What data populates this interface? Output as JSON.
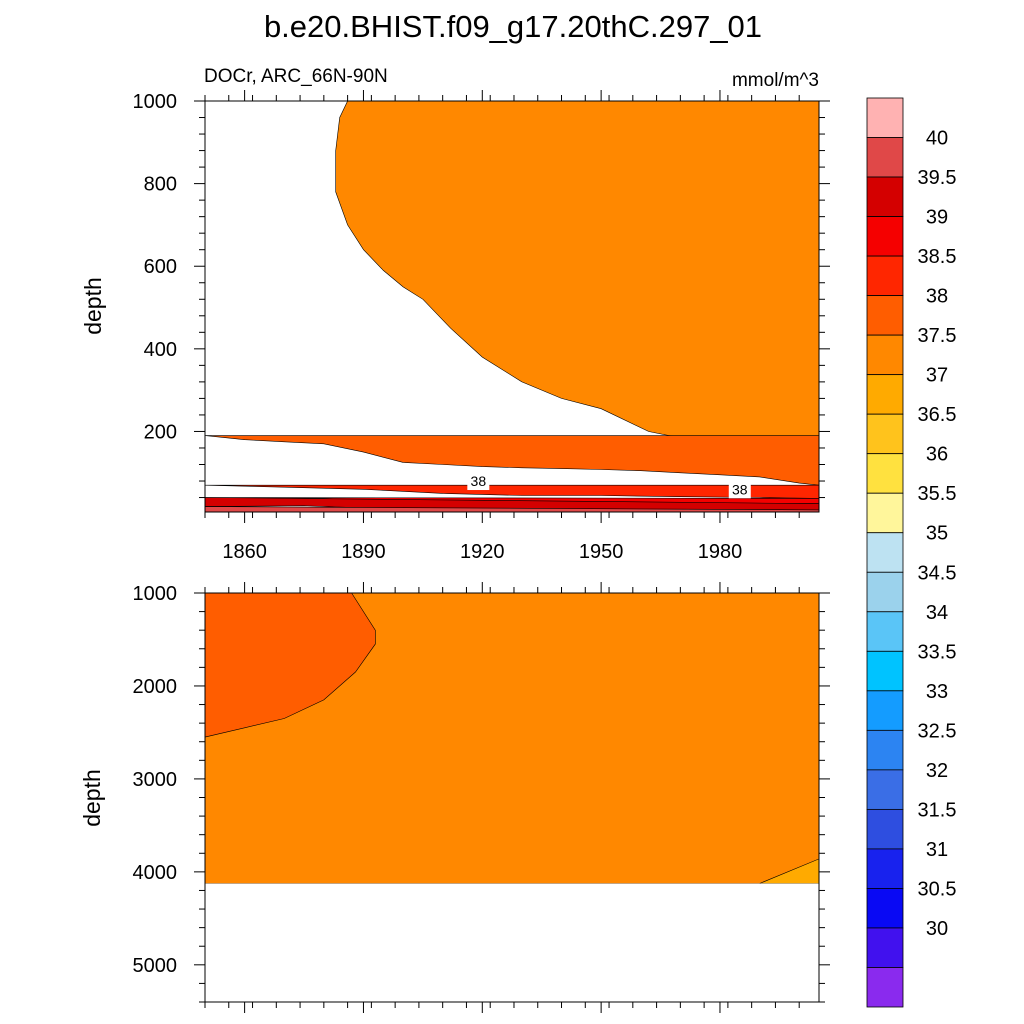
{
  "title": "b.e20.BHIST.f09_g17.20thC.297_01",
  "subtitle_left": "DOCr, ARC_66N-90N",
  "subtitle_right": "mmol/m^3",
  "chart_data": [
    {
      "type": "heatmap",
      "panel": "upper",
      "xlabel": "",
      "ylabel": "depth",
      "x_ticks": [
        "1860",
        "1890",
        "1920",
        "1950",
        "1980"
      ],
      "y_ticks": [
        "200",
        "400",
        "600",
        "800",
        "1000"
      ],
      "xlim": [
        1850,
        2005
      ],
      "ylim": [
        1000,
        5
      ],
      "contour_labels": [
        {
          "text": "38",
          "x": 1919,
          "y": 80
        },
        {
          "text": "38",
          "x": 1985,
          "y": 60
        }
      ],
      "regions": [
        {
          "level": "37-37.5",
          "color": "#ff8800",
          "x": [
            1850,
            1886,
            1884,
            1883,
            1883,
            1886,
            1890,
            1895,
            1900,
            1905,
            1912,
            1920,
            1930,
            1940,
            1950,
            1962,
            1975,
            1990,
            2000,
            2005,
            2005,
            1850
          ],
          "y": [
            1000,
            1000,
            960,
            880,
            780,
            700,
            640,
            590,
            550,
            520,
            450,
            380,
            320,
            280,
            255,
            200,
            175,
            140,
            110,
            110,
            1000,
            1000
          ]
        },
        {
          "level": "37.5-38",
          "color": "#ff5d00",
          "x": [
            1850,
            1860,
            1870,
            1880,
            1890,
            1900,
            1910,
            1920,
            1930,
            1940,
            1950,
            1960,
            1970,
            1980,
            1990,
            2000,
            2005,
            2005,
            1850
          ],
          "y": [
            190,
            180,
            175,
            170,
            150,
            125,
            120,
            115,
            112,
            110,
            108,
            105,
            100,
            95,
            90,
            75,
            70,
            190,
            190
          ]
        },
        {
          "level": "38-38.5",
          "color": "#ff2600",
          "x": [
            1850,
            1870,
            1890,
            1910,
            1930,
            1950,
            1970,
            1990,
            2005,
            2005,
            1850
          ],
          "y": [
            70,
            65,
            60,
            50,
            45,
            45,
            42,
            40,
            38,
            70,
            70
          ]
        },
        {
          "level": "38.5-39",
          "color": "#f50000",
          "x": [
            1850,
            1880,
            1900,
            1930,
            1960,
            2005,
            2005,
            1850
          ],
          "y": [
            40,
            38,
            30,
            30,
            28,
            25,
            38,
            40
          ]
        },
        {
          "level": "39-39.5",
          "color": "#d40000",
          "x": [
            1850,
            1875,
            1890,
            1910,
            2005,
            2005,
            1850
          ],
          "y": [
            18,
            20,
            15,
            12,
            10,
            25,
            40
          ]
        },
        {
          "level": "39.5-40",
          "color": "#e04848",
          "x": [
            1850,
            1880,
            1900,
            2005,
            2005,
            1850
          ],
          "y": [
            5,
            5,
            5,
            5,
            10,
            18
          ]
        }
      ]
    },
    {
      "type": "heatmap",
      "panel": "lower",
      "xlabel": "",
      "ylabel": "depth",
      "y_ticks": [
        "1000",
        "2000",
        "3000",
        "4000",
        "5000"
      ],
      "xlim": [
        1850,
        2005
      ],
      "ylim": [
        1000,
        5400
      ],
      "missing_below_depth": 4125,
      "regions": [
        {
          "level": "37-37.5",
          "color": "#ff8800",
          "x": [
            1850,
            2005,
            2005,
            1850
          ],
          "y": [
            1000,
            1000,
            4125,
            4125
          ]
        },
        {
          "level": "37.5-38",
          "color": "#ff5d00",
          "x": [
            1850,
            1887,
            1893,
            1893,
            1888,
            1880,
            1870,
            1860,
            1850
          ],
          "y": [
            1000,
            1000,
            1400,
            1550,
            1850,
            2150,
            2350,
            2450,
            2550
          ]
        },
        {
          "level": "36.5-37",
          "color": "#ffaa00",
          "x": [
            1990,
            2005,
            2005
          ],
          "y": [
            4125,
            3860,
            4125
          ]
        }
      ]
    }
  ],
  "colorbar": {
    "labels": [
      "40",
      "39.5",
      "39",
      "38.5",
      "38",
      "37.5",
      "37",
      "36.5",
      "36",
      "35.5",
      "35",
      "34.5",
      "34",
      "33.5",
      "33",
      "32.5",
      "32",
      "31.5",
      "31",
      "30.5",
      "30"
    ],
    "colors": [
      "#ffb2b2",
      "#e04848",
      "#d40000",
      "#f50000",
      "#ff2600",
      "#ff5d00",
      "#ff8800",
      "#ffaa00",
      "#ffc31c",
      "#ffe13f",
      "#fff69b",
      "#bde2f2",
      "#9bd2ec",
      "#5ac5f7",
      "#00c3ff",
      "#149cff",
      "#2c84f2",
      "#3a6ee6",
      "#2e4ee0",
      "#1822ee",
      "#0909f4",
      "#4111ee",
      "#8a2aee"
    ]
  }
}
